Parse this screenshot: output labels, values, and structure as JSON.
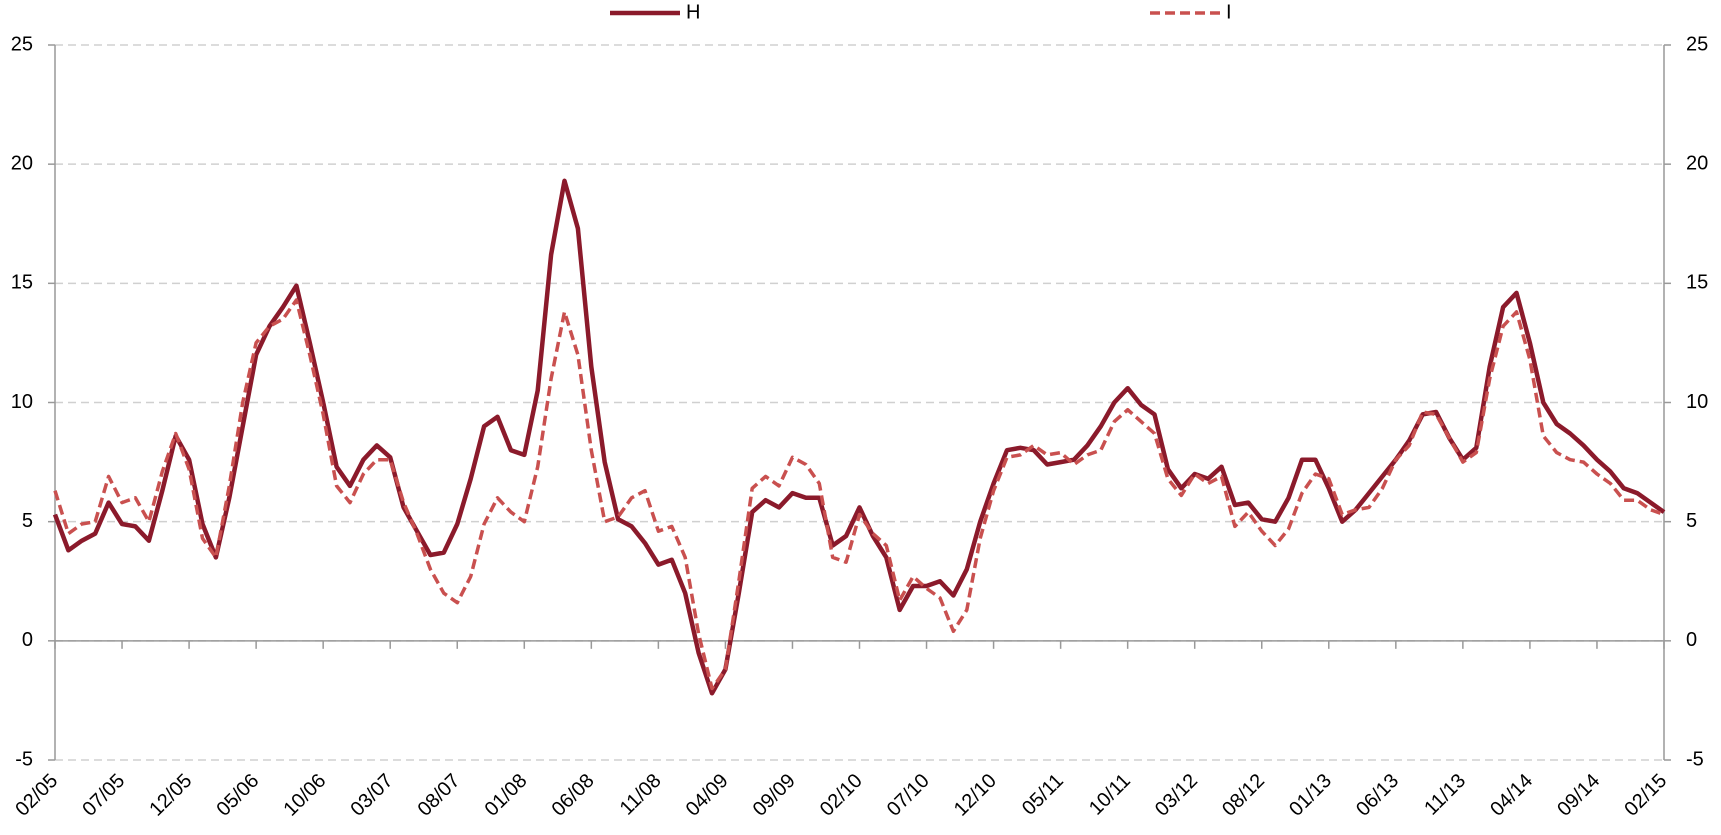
{
  "chart_data": {
    "type": "line",
    "categories": [
      "02/05",
      null,
      null,
      null,
      null,
      "07/05",
      null,
      null,
      null,
      null,
      "12/05",
      null,
      null,
      null,
      null,
      "05/06",
      null,
      null,
      null,
      null,
      "10/06",
      null,
      null,
      null,
      null,
      "03/07",
      null,
      null,
      null,
      null,
      "08/07",
      null,
      null,
      null,
      null,
      "01/08",
      null,
      null,
      null,
      null,
      "06/08",
      null,
      null,
      null,
      null,
      "11/08",
      null,
      null,
      null,
      null,
      "04/09",
      null,
      null,
      null,
      null,
      "09/09",
      null,
      null,
      null,
      null,
      "02/10",
      null,
      null,
      null,
      null,
      "07/10",
      null,
      null,
      null,
      null,
      "12/10",
      null,
      null,
      null,
      null,
      "05/11",
      null,
      null,
      null,
      null,
      "10/11",
      null,
      null,
      null,
      null,
      "03/12",
      null,
      null,
      null,
      null,
      "08/12",
      null,
      null,
      null,
      null,
      "01/13",
      null,
      null,
      null,
      null,
      "06/13",
      null,
      null,
      null,
      null,
      "11/13",
      null,
      null,
      null,
      null,
      "04/14",
      null,
      null,
      null,
      null,
      "09/14",
      null,
      null,
      null,
      null,
      "02/15"
    ],
    "series": [
      {
        "name": "H",
        "color": "#8b1a2b",
        "dashed": false,
        "values": [
          5.3,
          3.8,
          4.2,
          4.5,
          5.8,
          4.9,
          4.8,
          4.2,
          6.3,
          8.6,
          7.6,
          4.9,
          3.5,
          6.0,
          9.0,
          12.0,
          13.2,
          14.0,
          14.9,
          12.5,
          10.0,
          7.3,
          6.5,
          7.6,
          8.2,
          7.7,
          5.6,
          4.6,
          3.6,
          3.7,
          4.9,
          6.8,
          9.0,
          9.4,
          8.0,
          7.8,
          10.5,
          16.2,
          19.3,
          17.3,
          11.5,
          7.5,
          5.1,
          4.8,
          4.1,
          3.2,
          3.4,
          2.0,
          -0.5,
          -2.2,
          -1.2,
          2.0,
          5.4,
          5.9,
          5.6,
          6.2,
          6.0,
          6.0,
          4.0,
          4.4,
          5.6,
          4.4,
          3.5,
          1.3,
          2.3,
          2.3,
          2.5,
          1.9,
          3.0,
          5.0,
          6.6,
          8.0,
          8.1,
          8.0,
          7.4,
          7.5,
          7.6,
          8.2,
          9.0,
          10.0,
          10.6,
          9.9,
          9.5,
          7.2,
          6.4,
          7.0,
          6.8,
          7.3,
          5.7,
          5.8,
          5.1,
          5.0,
          6.0,
          7.6,
          7.6,
          6.4,
          5.0,
          5.5,
          6.2,
          6.9,
          7.6,
          8.4,
          9.5,
          9.6,
          8.5,
          7.6,
          8.1,
          11.5,
          14.0,
          14.6,
          12.5,
          10.0,
          9.1,
          8.7,
          8.2,
          7.6,
          7.1,
          6.4,
          6.2,
          5.8,
          5.4
        ]
      },
      {
        "name": "I",
        "color": "#c9504f",
        "dashed": true,
        "values": [
          6.3,
          4.5,
          4.9,
          5.0,
          6.9,
          5.8,
          6.0,
          5.0,
          7.1,
          8.7,
          7.2,
          4.3,
          3.5,
          6.5,
          10.0,
          12.5,
          13.2,
          13.5,
          14.3,
          12.0,
          9.5,
          6.5,
          5.8,
          7.0,
          7.6,
          7.6,
          5.8,
          4.5,
          3.0,
          2.0,
          1.6,
          2.7,
          4.9,
          6.0,
          5.4,
          5.0,
          7.3,
          11.0,
          13.8,
          12.0,
          8.0,
          5.0,
          5.2,
          6.0,
          6.3,
          4.6,
          4.8,
          3.5,
          0.3,
          -2.0,
          -1.2,
          2.5,
          6.4,
          6.9,
          6.5,
          7.7,
          7.4,
          6.6,
          3.5,
          3.3,
          5.3,
          4.5,
          4.0,
          1.7,
          2.7,
          2.2,
          1.8,
          0.4,
          1.3,
          4.3,
          6.3,
          7.7,
          7.8,
          8.2,
          7.8,
          7.9,
          7.4,
          7.8,
          8.0,
          9.2,
          9.7,
          9.2,
          8.7,
          6.8,
          6.1,
          7.0,
          6.6,
          6.9,
          4.8,
          5.4,
          4.6,
          4.0,
          4.7,
          6.2,
          7.0,
          6.8,
          5.3,
          5.5,
          5.6,
          6.4,
          7.6,
          8.2,
          9.6,
          9.5,
          8.5,
          7.5,
          7.9,
          11.0,
          13.2,
          13.8,
          11.8,
          8.6,
          7.9,
          7.6,
          7.5,
          7.0,
          6.6,
          5.9,
          5.9,
          5.5,
          5.3
        ]
      }
    ],
    "ylim": [
      -5,
      25
    ],
    "yticks": [
      -5,
      0,
      5,
      10,
      15,
      20,
      25
    ],
    "y2lim": [
      -5,
      25
    ],
    "y2ticks": [
      -5,
      0,
      5,
      10,
      15,
      20,
      25
    ],
    "grid": true,
    "legend": "top"
  }
}
